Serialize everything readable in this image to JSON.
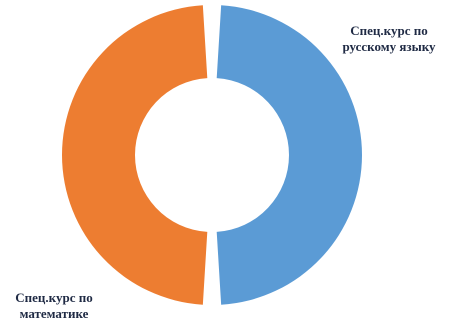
{
  "chart_data": {
    "type": "pie",
    "variant": "doughnut",
    "title": "",
    "series": [
      {
        "name": "",
        "labels": [
          "Спец.курс по русскому языку",
          "Спец.курс по математике"
        ],
        "label_lines": [
          [
            "Спец.курс по",
            "русскому языку"
          ],
          [
            "Спец.курс по",
            "математике"
          ]
        ],
        "values": [
          50,
          50
        ],
        "colors": [
          "#5B9BD5",
          "#ED7D31"
        ]
      }
    ],
    "legend": "none",
    "start_angle_deg": 0,
    "direction": "clockwise"
  }
}
